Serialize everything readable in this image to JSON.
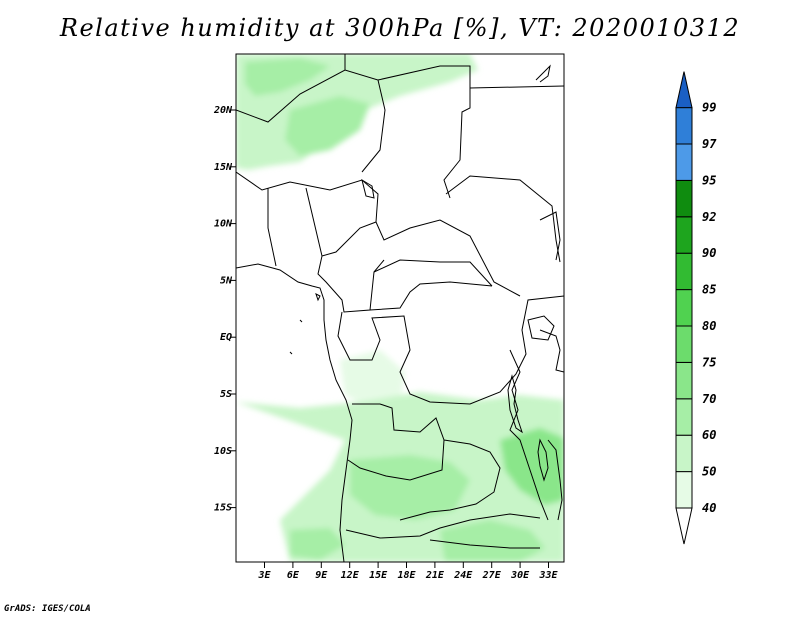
{
  "title": "Relative humidity at 300hPa [%], VT: 2020010312",
  "credit": "GrADS: IGES/COLA",
  "map": {
    "lat_ticks": [
      "20N",
      "15N",
      "10N",
      "5N",
      "EQ",
      "5S",
      "10S",
      "15S"
    ],
    "lon_ticks": [
      "3E",
      "6E",
      "9E",
      "12E",
      "15E",
      "18E",
      "21E",
      "24E",
      "27E",
      "30E",
      "33E"
    ]
  },
  "colorbar": {
    "levels": [
      "40",
      "50",
      "60",
      "70",
      "75",
      "80",
      "85",
      "90",
      "92",
      "95",
      "97",
      "99"
    ],
    "colors": [
      "#ffffff",
      "#e6fbe6",
      "#c8f5c8",
      "#a6eea6",
      "#8ae68a",
      "#6cdc6c",
      "#50d250",
      "#32bb32",
      "#1ea51e",
      "#0f8c0f",
      "#4d9ae8",
      "#2f7fd8",
      "#1a5fc4"
    ]
  }
}
